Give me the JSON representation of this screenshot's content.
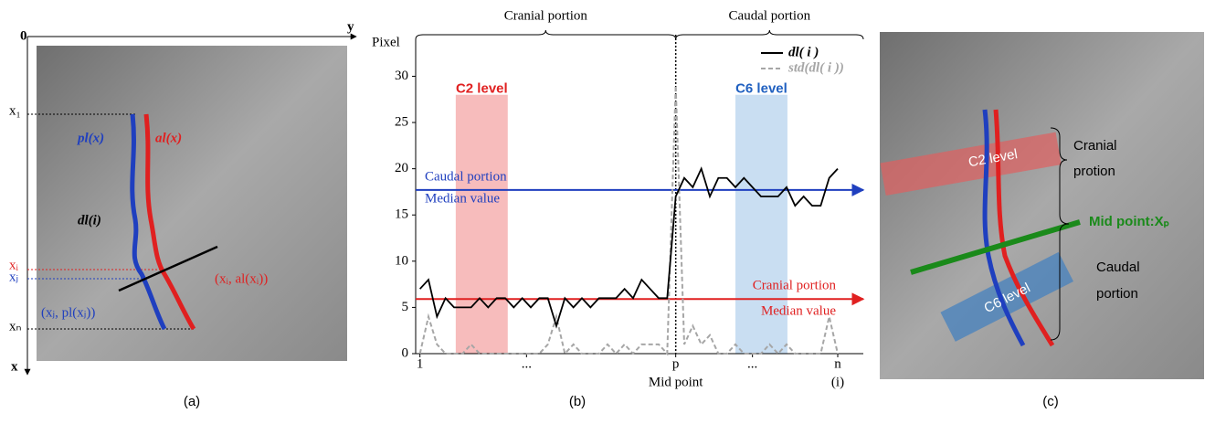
{
  "panel_a": {
    "origin": "0",
    "y_axis": "y",
    "x_axis": "x",
    "tick_x1": "x₁",
    "tick_xi": "xᵢ",
    "tick_xj": "xⱼ",
    "tick_xn": "xₙ",
    "pl_label": "pl(x)",
    "al_label": "al(x)",
    "dl_label": "dl(i)",
    "al_point": "(xᵢ, al(xᵢ))",
    "pl_point": "(xⱼ, pl(xⱼ))",
    "caption": "(a)"
  },
  "chart_data": {
    "type": "line",
    "y_label": "Pixel",
    "caption": "(b)",
    "x": [
      1,
      3,
      5,
      7,
      9,
      11,
      13,
      15,
      17,
      19,
      21,
      23,
      25,
      27,
      29,
      31,
      33,
      35,
      37,
      39,
      41,
      43,
      45,
      47,
      49,
      51,
      53,
      55,
      57,
      59,
      61,
      63,
      65,
      67,
      69,
      71,
      73,
      75,
      77,
      79,
      81,
      83,
      85,
      87,
      89,
      91,
      93,
      95,
      97,
      99
    ],
    "series": [
      {
        "name": "dl( i )",
        "color": "#000000",
        "dashed": false,
        "values": [
          7,
          8,
          4,
          6,
          5,
          5,
          5,
          6,
          5,
          6,
          6,
          5,
          6,
          5,
          6,
          6,
          3,
          6,
          5,
          6,
          5,
          6,
          6,
          6,
          7,
          6,
          8,
          7,
          6,
          6,
          17,
          19,
          18,
          20,
          17,
          19,
          19,
          18,
          19,
          18,
          17,
          17,
          17,
          18,
          16,
          17,
          16,
          16,
          19,
          20
        ]
      },
      {
        "name": "std(dl( i ))",
        "color": "#a6a6a6",
        "dashed": true,
        "values": [
          0,
          4,
          1,
          0,
          0,
          0,
          1,
          0,
          0,
          0,
          0,
          0,
          0,
          0,
          0,
          1,
          4,
          0,
          1,
          0,
          0,
          0,
          1,
          0,
          1,
          0,
          1,
          1,
          1,
          0,
          29,
          1,
          3,
          1,
          2,
          0,
          0,
          1,
          0,
          0,
          0,
          1,
          0,
          1,
          0,
          0,
          0,
          0,
          4,
          0
        ]
      }
    ],
    "xlim": [
      0,
      105
    ],
    "ylim": [
      0,
      34
    ],
    "xticks": [
      1,
      {
        "value": 26,
        "label": "..."
      },
      {
        "value": 61,
        "label": "p"
      },
      {
        "value": 79,
        "label": "..."
      },
      {
        "value": 99,
        "label": "n"
      }
    ],
    "yticks": [
      0,
      5,
      10,
      15,
      20,
      25,
      30
    ],
    "x_annotations": [
      {
        "value": 61,
        "label": "Mid point"
      },
      {
        "value": 99,
        "label": "(i)"
      }
    ],
    "bands": [
      {
        "label": "C2 level",
        "range": [
          9.4,
          21.6
        ],
        "color": "#f4a6a6",
        "text_color": "#e02020"
      },
      {
        "label": "C6 level",
        "range": [
          75,
          87.2
        ],
        "color": "#b7d3ee",
        "text_color": "#2060c0"
      }
    ],
    "hlines": [
      {
        "value": 17.7,
        "color": "#1f3fbf",
        "label": [
          "Caudal portion",
          "Median value"
        ]
      },
      {
        "value": 5.9,
        "color": "#e02020",
        "label": [
          "Cranial portion",
          "Median value"
        ]
      }
    ],
    "portions": [
      {
        "label": "Cranial portion",
        "range": [
          0,
          61
        ]
      },
      {
        "label": "Caudal portion",
        "range": [
          61,
          105
        ]
      }
    ],
    "legend": "upper right"
  },
  "panel_c": {
    "c2": "C2 level",
    "c6": "C6 level",
    "cranial": [
      "Cranial",
      "protion"
    ],
    "mid": "Mid point:Xₚ",
    "caudal": [
      "Caudal",
      "portion"
    ],
    "caption": "(c)"
  }
}
